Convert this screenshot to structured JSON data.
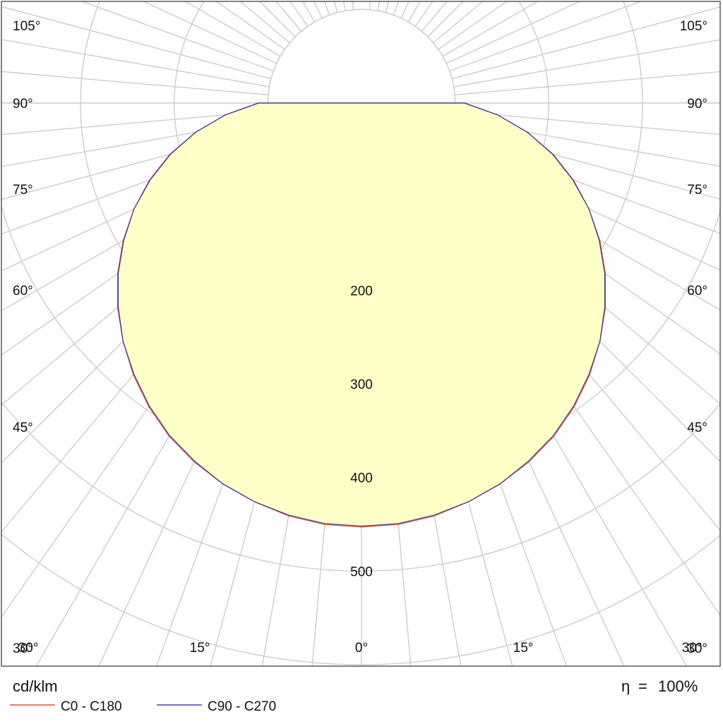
{
  "unit_label": "cd/klm",
  "efficiency": {
    "symbol": "η",
    "equals": "=",
    "value": "100%"
  },
  "legend": [
    {
      "label": "C0 - C180",
      "color": "#cc3322"
    },
    {
      "label": "C90 - C270",
      "color": "#222299"
    }
  ],
  "colors": {
    "fill": "#ffffc8",
    "grid": "#cccccc",
    "frame": "#333333"
  },
  "chart_data": {
    "type": "polar",
    "radial_axis": {
      "ticks": [
        100,
        200,
        300,
        400,
        500,
        600
      ],
      "tick_labels": [
        "200",
        "300",
        "400",
        "500"
      ],
      "max_shown": 700
    },
    "angle_axis": {
      "left_labels": [
        "105°",
        "90°",
        "75°",
        "60°",
        "45°",
        "30°",
        "15°"
      ],
      "right_labels": [
        "105°",
        "90°",
        "75°",
        "60°",
        "45°",
        "30°",
        "15°"
      ],
      "bottom_label": "0°",
      "spoke_step_deg": 5
    },
    "series": [
      {
        "name": "C0 - C180",
        "gamma": [
          0,
          5,
          10,
          15,
          20,
          25,
          30,
          35,
          40,
          45,
          50,
          55,
          60,
          65,
          70,
          75,
          80,
          85,
          90
        ],
        "values": [
          453,
          452,
          448,
          441,
          433,
          423,
          411,
          396,
          379,
          360,
          340,
          318,
          294,
          268,
          241,
          212,
          180,
          146,
          110
        ]
      },
      {
        "name": "C90 - C270",
        "gamma": [
          0,
          5,
          10,
          15,
          20,
          25,
          30,
          35,
          40,
          45,
          50,
          55,
          60,
          65,
          70,
          75,
          80,
          85,
          90
        ],
        "values": [
          452,
          451,
          447,
          441,
          433,
          422,
          410,
          395,
          378,
          360,
          339,
          317,
          293,
          268,
          240,
          211,
          180,
          146,
          110
        ]
      }
    ]
  }
}
